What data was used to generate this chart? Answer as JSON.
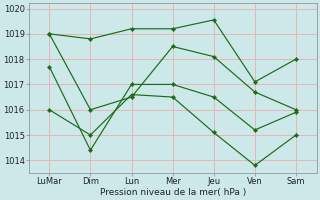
{
  "background_color": "#cce8e8",
  "grid_color": "#e8b4b4",
  "line_color": "#1a6b1a",
  "x_labels": [
    "LuMar",
    "Dim",
    "Lun",
    "Mer",
    "Jeu",
    "Ven",
    "Sam"
  ],
  "x_positions": [
    0,
    1,
    2,
    3,
    4,
    5,
    6
  ],
  "series": [
    [
      1019.0,
      1018.8,
      1019.2,
      1019.2,
      1019.55,
      1017.1,
      1018.0
    ],
    [
      1019.0,
      1016.0,
      1016.5,
      1018.5,
      1018.1,
      1016.7,
      1016.0
    ],
    [
      1017.7,
      1014.4,
      1017.0,
      1017.0,
      1016.5,
      1015.2,
      1015.9
    ],
    [
      1016.0,
      1015.0,
      1016.6,
      1016.5,
      1015.1,
      1013.8,
      1015.0
    ]
  ],
  "ylabel": "Pression niveau de la mer( hPa )",
  "ylim": [
    1013.5,
    1020.2
  ],
  "yticks": [
    1014,
    1015,
    1016,
    1017,
    1018,
    1019,
    1020
  ],
  "label_fontsize": 6.5,
  "tick_fontsize": 6.0
}
